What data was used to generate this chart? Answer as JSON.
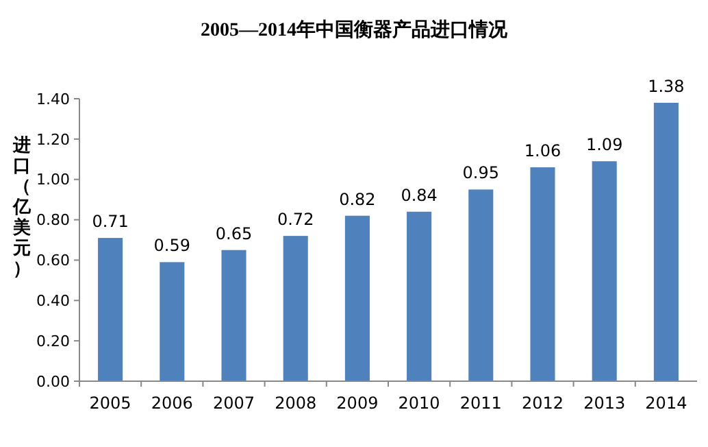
{
  "chart_data": {
    "type": "bar",
    "title": "2005—2014年中国衡器产品进口情况",
    "ylabel": "进口（亿美元）",
    "categories": [
      "2005",
      "2006",
      "2007",
      "2008",
      "2009",
      "2010",
      "2011",
      "2012",
      "2013",
      "2014"
    ],
    "values": [
      0.71,
      0.59,
      0.65,
      0.72,
      0.82,
      0.84,
      0.95,
      1.06,
      1.09,
      1.38
    ],
    "color": "#4f81bd",
    "ylim": [
      0,
      1.4
    ],
    "yticks": [
      {
        "value": 0,
        "label": "0.00"
      },
      {
        "value": 0.2,
        "label": "0.20"
      },
      {
        "value": 0.4,
        "label": "0.40"
      },
      {
        "value": 0.6,
        "label": "0.60"
      },
      {
        "value": 0.8,
        "label": "0.80"
      },
      {
        "value": 1,
        "label": "1.00"
      },
      {
        "value": 1.2,
        "label": "1.20"
      },
      {
        "value": 1.4,
        "label": "1.40"
      }
    ],
    "data_labels": true,
    "grid": false
  }
}
